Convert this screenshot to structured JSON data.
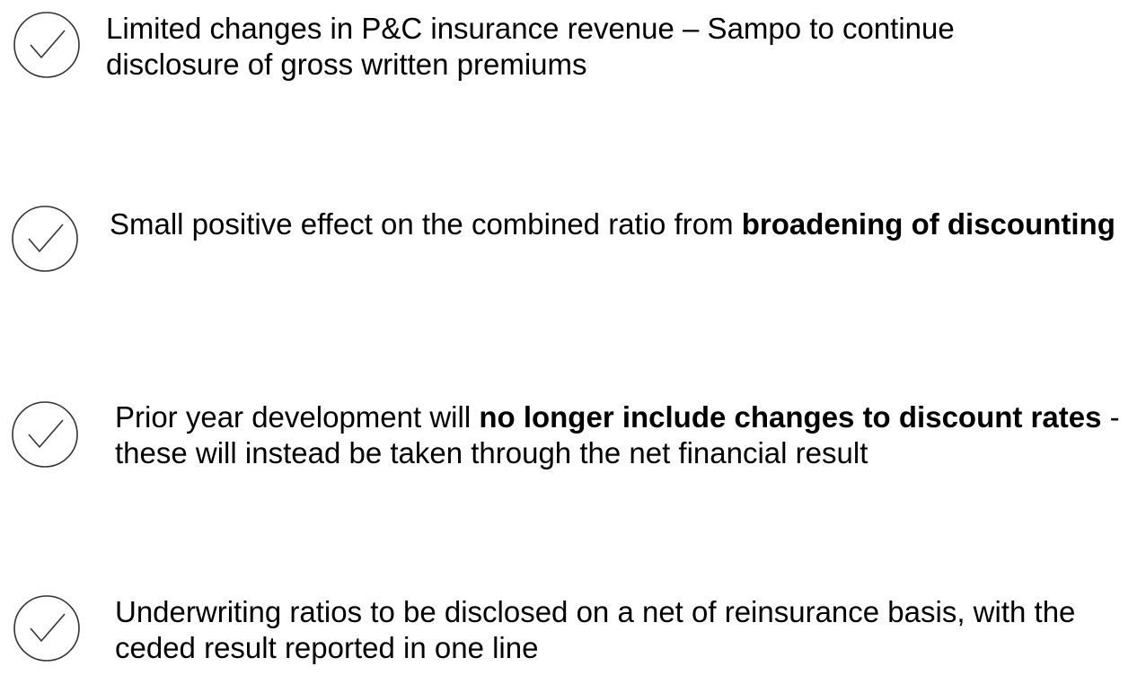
{
  "items": [
    {
      "segments": [
        {
          "text": "Limited changes in P&C insurance revenue – Sampo to continue disclosure of gross written premiums",
          "bold": false
        }
      ]
    },
    {
      "segments": [
        {
          "text": "Small positive effect on the combined ratio from ",
          "bold": false
        },
        {
          "text": "broadening of discounting",
          "bold": true
        }
      ]
    },
    {
      "segments": [
        {
          "text": "Prior year development will ",
          "bold": false
        },
        {
          "text": "no longer include changes to discount rates",
          "bold": true
        },
        {
          "text": " - these will instead be taken through the net financial result",
          "bold": false
        }
      ]
    },
    {
      "segments": [
        {
          "text": "Underwriting ratios to be disclosed on a net of reinsurance basis, with the ceded result reported in one line",
          "bold": false
        }
      ]
    }
  ]
}
